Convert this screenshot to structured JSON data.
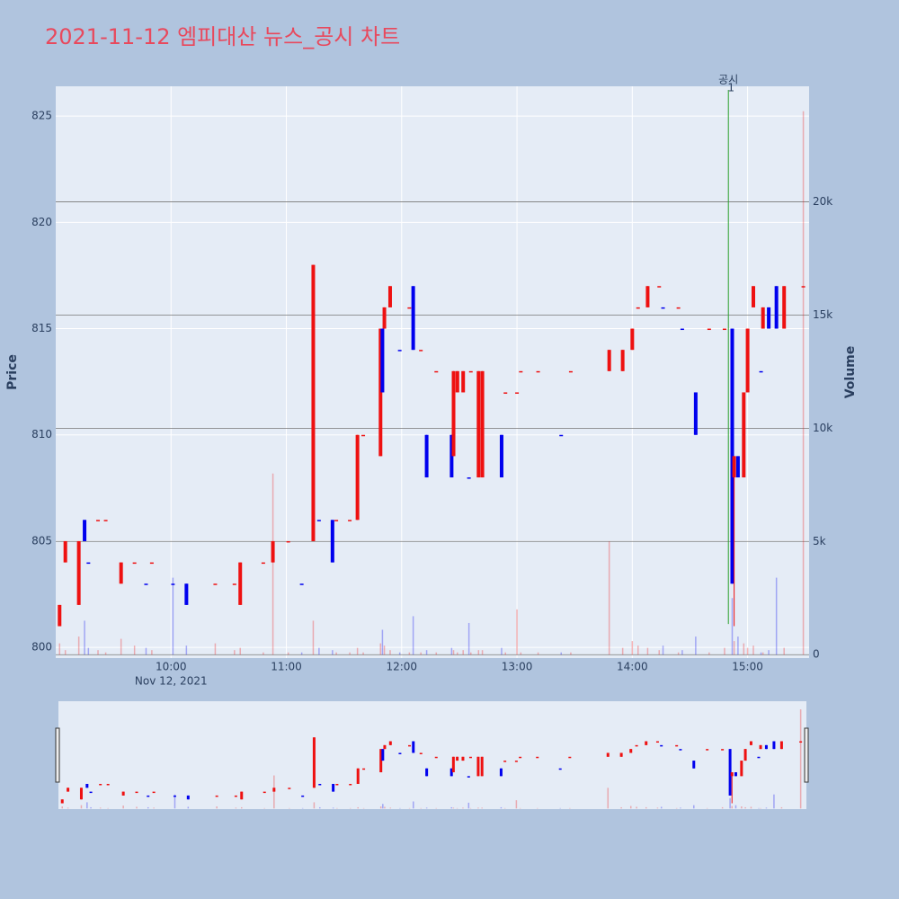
{
  "chart_data": {
    "type": "candlestick",
    "title": "2021-11-12 엠피대산 뉴스_공시 차트",
    "ylabel": "Price",
    "y2label": "Volume",
    "up_color": "#ee1111",
    "down_color": "#0000ee",
    "x": [
      "09:02",
      "09:05",
      "09:12",
      "09:15",
      "09:17",
      "09:22",
      "09:26",
      "09:34",
      "09:41",
      "09:47",
      "09:50",
      "10:01",
      "10:08",
      "10:23",
      "10:33",
      "10:36",
      "10:48",
      "10:53",
      "11:01",
      "11:08",
      "11:14",
      "11:17",
      "11:24",
      "11:26",
      "11:33",
      "11:37",
      "11:40",
      "11:49",
      "11:50",
      "11:51",
      "11:54",
      "11:59",
      "12:04",
      "12:06",
      "12:10",
      "12:13",
      "12:18",
      "12:26",
      "12:27",
      "12:29",
      "12:32",
      "12:35",
      "12:36",
      "12:40",
      "12:42",
      "12:52",
      "12:54",
      "13:00",
      "13:02",
      "13:11",
      "13:23",
      "13:28",
      "13:48",
      "13:55",
      "14:00",
      "14:03",
      "14:08",
      "14:14",
      "14:16",
      "14:24",
      "14:26",
      "14:33",
      "14:40",
      "14:48",
      "14:52",
      "14:53",
      "14:55",
      "14:58",
      "15:00",
      "15:03",
      "15:07",
      "15:08",
      "15:11",
      "15:15",
      "15:19",
      "15:29"
    ],
    "open": [
      801,
      804,
      802,
      806,
      804,
      806,
      806,
      803,
      804,
      803,
      804,
      803,
      803,
      803,
      803,
      802,
      804,
      804,
      805,
      803,
      805,
      806,
      806,
      806,
      806,
      806,
      810,
      809,
      815,
      815,
      816,
      814,
      816,
      817,
      814,
      810,
      813,
      810,
      809,
      812,
      812,
      808,
      813,
      808,
      808,
      810,
      812,
      812,
      813,
      813,
      810,
      813,
      813,
      813,
      814,
      816,
      816,
      817,
      816,
      816,
      815,
      812,
      815,
      815,
      815,
      808,
      809,
      808,
      812,
      816,
      813,
      815,
      816,
      817,
      815,
      817
    ],
    "high": [
      802,
      805,
      805,
      806,
      804,
      806,
      806,
      804,
      804,
      803,
      804,
      803,
      803,
      803,
      803,
      804,
      804,
      805,
      805,
      803,
      818,
      806,
      806,
      806,
      806,
      810,
      810,
      815,
      815,
      816,
      817,
      814,
      816,
      817,
      814,
      810,
      813,
      810,
      813,
      813,
      813,
      808,
      813,
      813,
      813,
      810,
      812,
      812,
      813,
      813,
      810,
      813,
      814,
      814,
      815,
      816,
      817,
      817,
      816,
      816,
      815,
      812,
      815,
      815,
      815,
      809,
      809,
      812,
      815,
      817,
      813,
      816,
      816,
      817,
      817,
      817
    ],
    "low": [
      801,
      804,
      802,
      805,
      804,
      806,
      806,
      803,
      804,
      803,
      804,
      803,
      802,
      803,
      803,
      802,
      804,
      804,
      805,
      803,
      805,
      806,
      804,
      806,
      806,
      806,
      810,
      809,
      812,
      815,
      816,
      814,
      816,
      814,
      814,
      808,
      813,
      808,
      809,
      812,
      812,
      808,
      813,
      808,
      808,
      808,
      812,
      812,
      813,
      813,
      810,
      813,
      813,
      813,
      814,
      816,
      816,
      817,
      816,
      816,
      815,
      810,
      815,
      815,
      803,
      801,
      808,
      808,
      812,
      816,
      813,
      815,
      815,
      815,
      815,
      817
    ],
    "close": [
      802,
      805,
      805,
      805,
      804,
      806,
      806,
      804,
      804,
      803,
      804,
      803,
      802,
      803,
      803,
      804,
      804,
      805,
      805,
      803,
      818,
      806,
      804,
      806,
      806,
      810,
      810,
      815,
      812,
      816,
      817,
      814,
      816,
      814,
      814,
      808,
      813,
      808,
      813,
      813,
      813,
      808,
      813,
      813,
      813,
      808,
      812,
      812,
      813,
      813,
      810,
      813,
      814,
      814,
      815,
      816,
      817,
      817,
      816,
      816,
      815,
      810,
      815,
      815,
      803,
      809,
      808,
      812,
      815,
      817,
      813,
      816,
      815,
      815,
      817,
      817
    ],
    "volume": [
      500,
      200,
      800,
      1500,
      300,
      200,
      100,
      700,
      400,
      300,
      200,
      3400,
      400,
      500,
      200,
      300,
      100,
      8000,
      100,
      100,
      1500,
      300,
      200,
      100,
      100,
      300,
      100,
      500,
      1100,
      400,
      200,
      100,
      100,
      1700,
      100,
      200,
      100,
      300,
      200,
      100,
      200,
      1400,
      100,
      200,
      200,
      300,
      100,
      2000,
      100,
      100,
      100,
      100,
      5000,
      300,
      600,
      400,
      300,
      200,
      400,
      100,
      200,
      800,
      100,
      300,
      2500,
      600,
      800,
      500,
      300,
      400,
      100,
      100,
      200,
      3400,
      300,
      24000
    ],
    "xlim": [
      "09:00",
      "15:32"
    ],
    "xticks": [
      "10:00",
      "11:00",
      "12:00",
      "13:00",
      "14:00",
      "15:00"
    ],
    "x_date_label": "Nov 12, 2021",
    "ylim": [
      799.5,
      826.4
    ],
    "yticks": [
      800,
      805,
      810,
      815,
      820,
      825
    ],
    "y2lim": [
      -150,
      25100
    ],
    "y2ticks": [
      0,
      {
        "value": 5000,
        "label": "5k"
      },
      {
        "value": 10000,
        "label": "10k"
      },
      {
        "value": 15000,
        "label": "15k"
      },
      {
        "value": 20000,
        "label": "20k"
      }
    ],
    "annotation": {
      "x": "14:50",
      "text": "공시",
      "subtext": "1"
    },
    "rangeslider": true
  }
}
